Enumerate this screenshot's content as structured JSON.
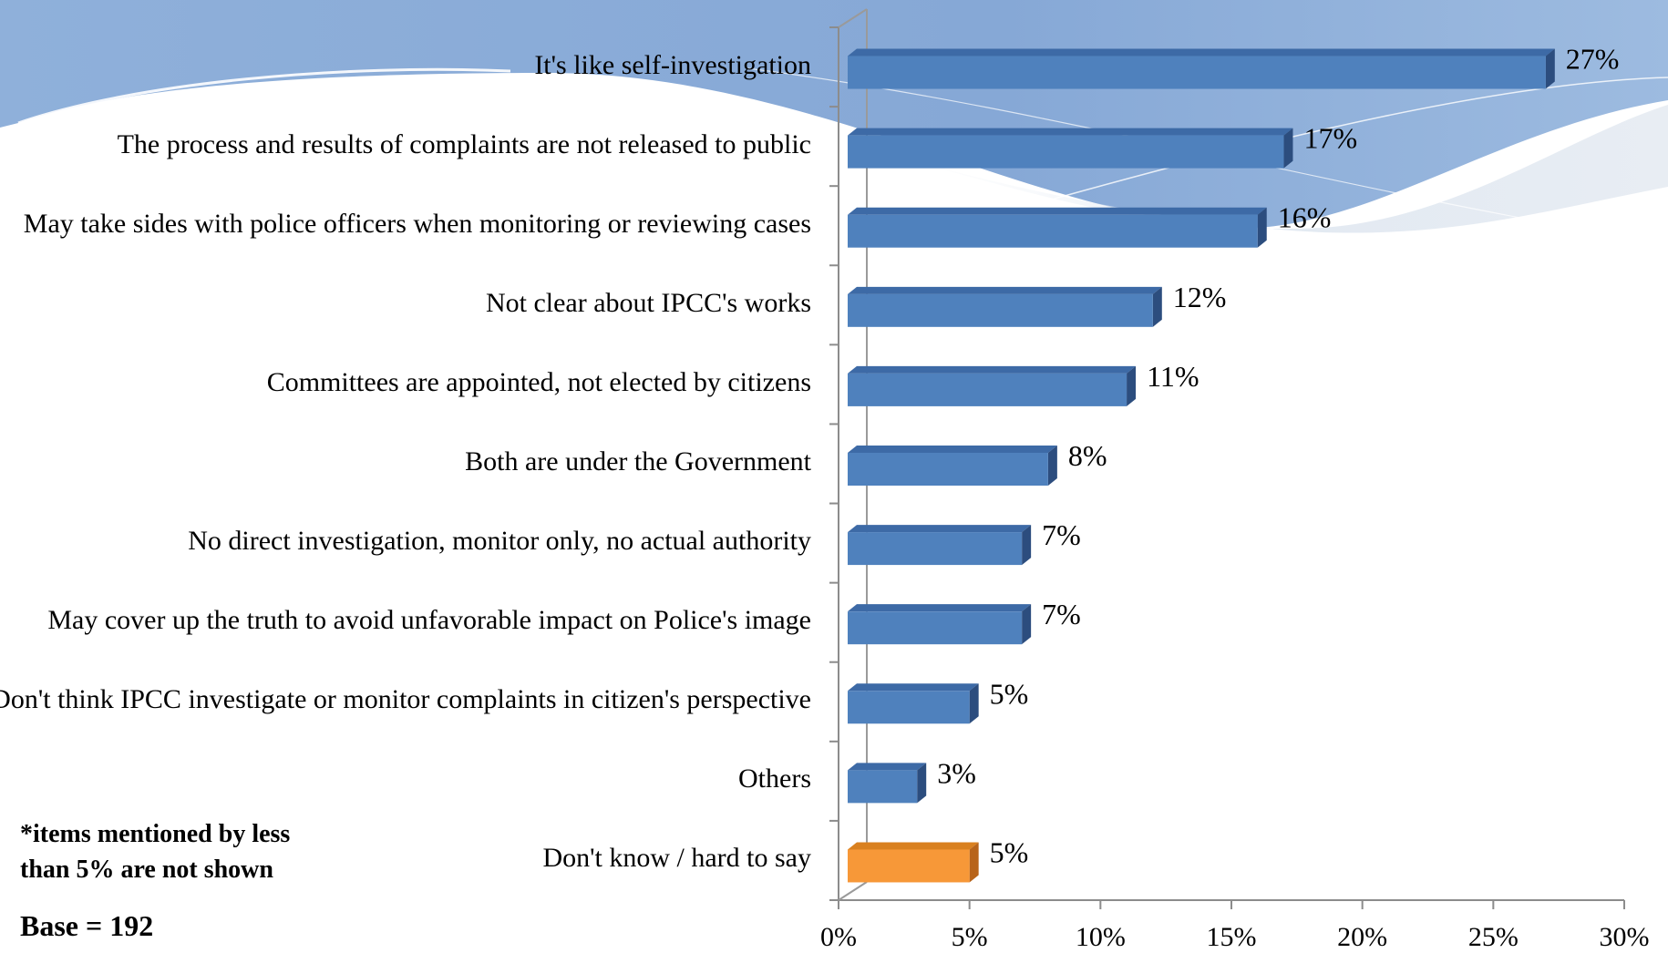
{
  "chart_data": {
    "type": "bar",
    "orientation": "horizontal",
    "title": "",
    "xlabel": "",
    "ylabel": "",
    "xlim": [
      0,
      30
    ],
    "x_ticks": [
      "0%",
      "5%",
      "10%",
      "15%",
      "20%",
      "25%",
      "30%"
    ],
    "categories": [
      "It's like self-investigation",
      "The process and results of complaints are not released to public",
      "May take sides with police officers when monitoring or reviewing cases",
      "Not clear about IPCC's works",
      "Committees are appointed, not elected by citizens",
      "Both are under the Government",
      "No direct investigation, monitor only, no actual authority",
      "May cover up the truth to avoid unfavorable impact on Police's image",
      "Don't think IPCC investigate or monitor complaints in citizen's perspective",
      "Others",
      "Don't know / hard to say"
    ],
    "values": [
      27,
      17,
      16,
      12,
      11,
      8,
      7,
      7,
      5,
      3,
      5
    ],
    "data_labels": [
      "27%",
      "17%",
      "16%",
      "12%",
      "11%",
      "8%",
      "7%",
      "7%",
      "5%",
      "3%",
      "5%"
    ],
    "colors": {
      "bar": "#4f81bd",
      "bar_top": "#3d6aa6",
      "bar_side": "#2c4d7e",
      "highlight": "#f79838",
      "highlight_top": "#d9801f",
      "highlight_side": "#b8641a",
      "axis": "#8c8c8c",
      "banner": "#7fa4d3"
    },
    "highlight_index": 10,
    "grid": false,
    "legend": "none"
  },
  "notes": {
    "note": "*items mentioned by less than 5% are not shown",
    "base": "Base = 192"
  }
}
